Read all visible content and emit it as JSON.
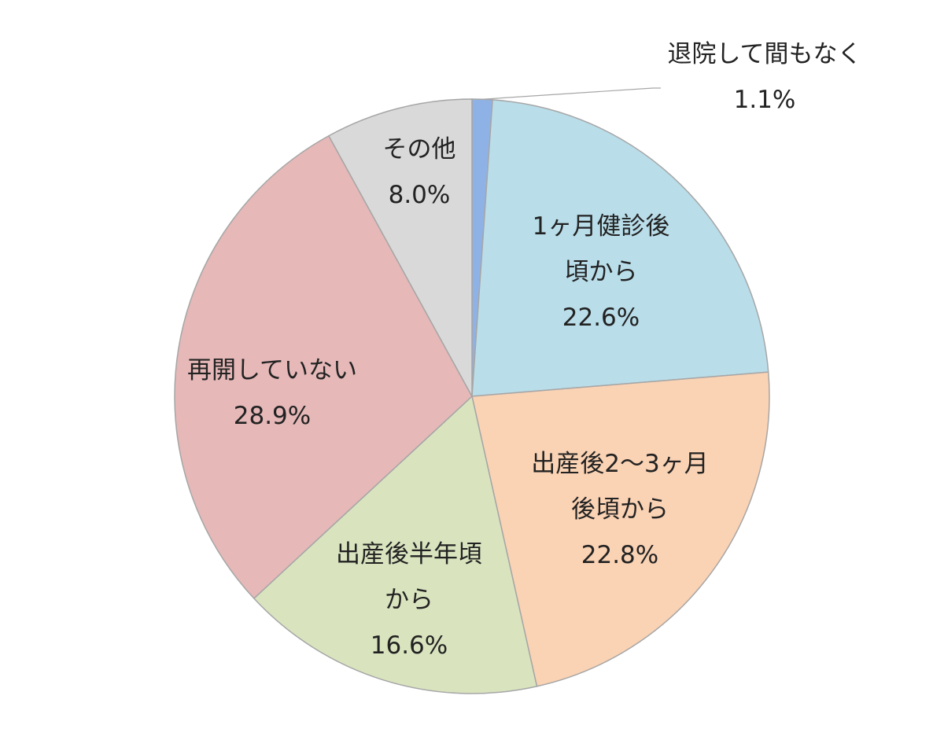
{
  "chart_data": {
    "type": "pie",
    "start_angle_deg": 0,
    "direction": "clockwise",
    "slices": [
      {
        "label_lines": [
          "退院して間もなく"
        ],
        "value_label": "1.1%",
        "value": 1.1,
        "color": "#8fb2e6"
      },
      {
        "label_lines": [
          "1ヶ月健診後",
          "頃から"
        ],
        "value_label": "22.6%",
        "value": 22.6,
        "color": "#b9dde9"
      },
      {
        "label_lines": [
          "出産後2～3ヶ月",
          "後頃から"
        ],
        "value_label": "22.8%",
        "value": 22.8,
        "color": "#fad2b4"
      },
      {
        "label_lines": [
          "出産後半年頃",
          "から"
        ],
        "value_label": "16.6%",
        "value": 16.6,
        "color": "#d9e4bf"
      },
      {
        "label_lines": [
          "再開していない"
        ],
        "value_label": "28.9%",
        "value": 28.9,
        "color": "#e6b8b8"
      },
      {
        "label_lines": [
          "その他"
        ],
        "value_label": "8.0%",
        "value": 8.0,
        "color": "#d9d9d9"
      }
    ]
  }
}
